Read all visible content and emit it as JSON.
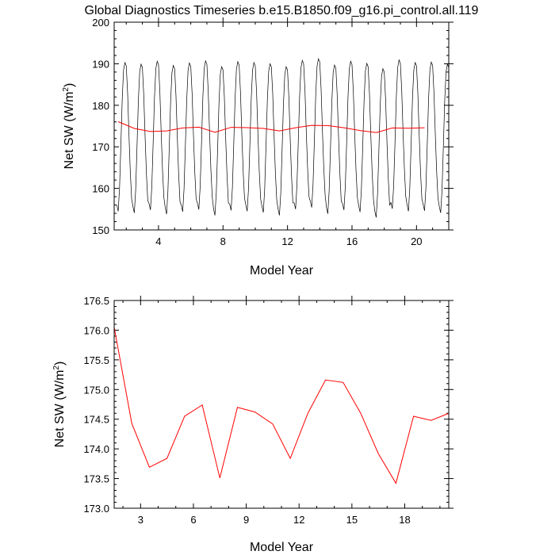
{
  "chart_data": [
    {
      "type": "line",
      "title": "Global Diagnostics Timeseries b.e15.B1850.f09_g16.pi_control.all.119",
      "xlabel": "Model Year",
      "ylabel_main": "Net SW (W/m",
      "ylabel_sup": "2",
      "ylabel_close": ")",
      "xlim": [
        1.25,
        22
      ],
      "ylim": [
        150,
        200
      ],
      "xticks": [
        4,
        8,
        12,
        16,
        20
      ],
      "yticks": [
        150,
        160,
        170,
        180,
        190,
        200
      ],
      "series": [
        {
          "kind": "monthly",
          "color": "#000000",
          "start_year": 1.4167,
          "step": 0.08333,
          "annual_pattern": [
            156.0,
            154.5,
            160.0,
            170.5,
            181.5,
            188.5,
            190.3,
            189.5,
            183.0,
            173.0,
            164.0,
            157.5
          ],
          "year_offsets": [
            0.0,
            -0.4,
            0.3,
            -0.7,
            -0.1,
            0.4,
            -1.0,
            0.2,
            0.0,
            -0.3,
            -1.0,
            0.5,
            0.9,
            -0.6,
            0.3,
            -0.2,
            -1.5,
            0.6,
            0.0,
            0.1,
            -0.4
          ]
        },
        {
          "kind": "annual",
          "color": "#ff0000",
          "x": [
            1.5,
            2.5,
            3.5,
            4.5,
            5.5,
            6.5,
            7.5,
            8.5,
            9.5,
            10.5,
            11.5,
            12.5,
            13.5,
            14.5,
            15.5,
            16.5,
            17.5,
            18.5,
            19.5,
            20.5
          ],
          "y": [
            176.05,
            174.43,
            173.69,
            173.84,
            174.55,
            174.74,
            173.51,
            174.7,
            174.62,
            174.42,
            173.84,
            174.6,
            175.16,
            175.12,
            174.6,
            173.92,
            173.42,
            174.55,
            174.48,
            174.6
          ]
        }
      ]
    },
    {
      "type": "line",
      "xlabel": "Model Year",
      "ylabel_main": "Net SW (W/m",
      "ylabel_sup": "2",
      "ylabel_close": ")",
      "xlim": [
        1.5,
        20.5
      ],
      "ylim": [
        173.0,
        176.5
      ],
      "xticks": [
        3,
        6,
        9,
        12,
        15,
        18
      ],
      "yticks": [
        "173.0",
        "173.5",
        "174.0",
        "174.5",
        "175.0",
        "175.5",
        "176.0",
        "176.5"
      ],
      "series": [
        {
          "kind": "annual",
          "color": "#ff0000",
          "x": [
            1.5,
            2.5,
            3.5,
            4.5,
            5.5,
            6.5,
            7.5,
            8.5,
            9.5,
            10.5,
            11.5,
            12.5,
            13.5,
            14.5,
            15.5,
            16.5,
            17.5,
            18.5,
            19.5,
            20.5
          ],
          "y": [
            176.05,
            174.43,
            173.69,
            173.84,
            174.55,
            174.74,
            173.51,
            174.7,
            174.62,
            174.42,
            173.84,
            174.6,
            175.16,
            175.12,
            174.6,
            173.92,
            173.42,
            174.55,
            174.48,
            174.6
          ]
        }
      ]
    }
  ]
}
